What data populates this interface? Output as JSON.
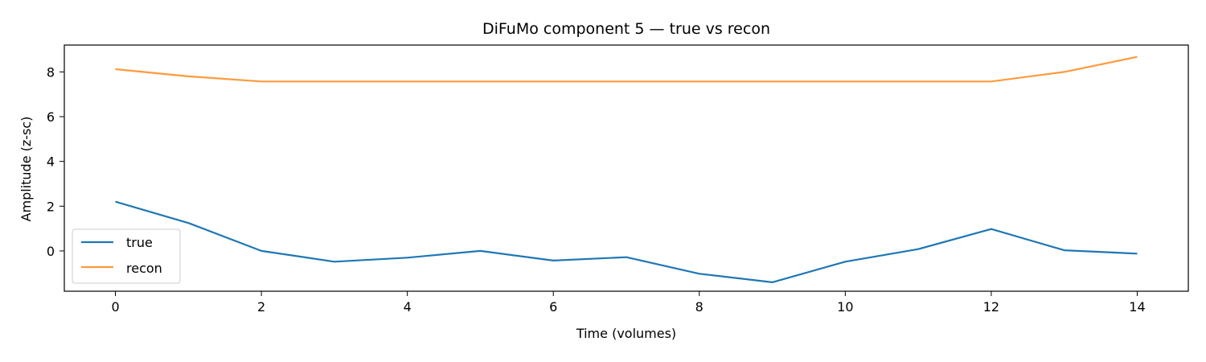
{
  "chart_data": {
    "type": "line",
    "title": "DiFuMo component 5 — true vs recon",
    "xlabel": "Time (volumes)",
    "ylabel": "Amplitude (z-sc)",
    "x": [
      0,
      1,
      2,
      3,
      4,
      5,
      6,
      7,
      8,
      9,
      10,
      11,
      12,
      13,
      14
    ],
    "xlim": [
      -0.7,
      14.7
    ],
    "ylim": [
      -1.8,
      9.2
    ],
    "xticks": [
      0,
      2,
      4,
      6,
      8,
      10,
      12,
      14
    ],
    "yticks": [
      0,
      2,
      4,
      6,
      8
    ],
    "grid": false,
    "legend_position": "lower-left",
    "series": [
      {
        "name": "true",
        "color": "#1f77b4",
        "values": [
          2.2,
          1.25,
          0.0,
          -0.48,
          -0.3,
          0.0,
          -0.43,
          -0.28,
          -1.02,
          -1.4,
          -0.48,
          0.08,
          0.98,
          0.03,
          -0.12
        ]
      },
      {
        "name": "recon",
        "color": "#ff9a3c",
        "values": [
          8.12,
          7.8,
          7.57,
          7.57,
          7.57,
          7.57,
          7.57,
          7.57,
          7.57,
          7.57,
          7.57,
          7.57,
          7.57,
          8.0,
          8.67
        ]
      }
    ]
  }
}
